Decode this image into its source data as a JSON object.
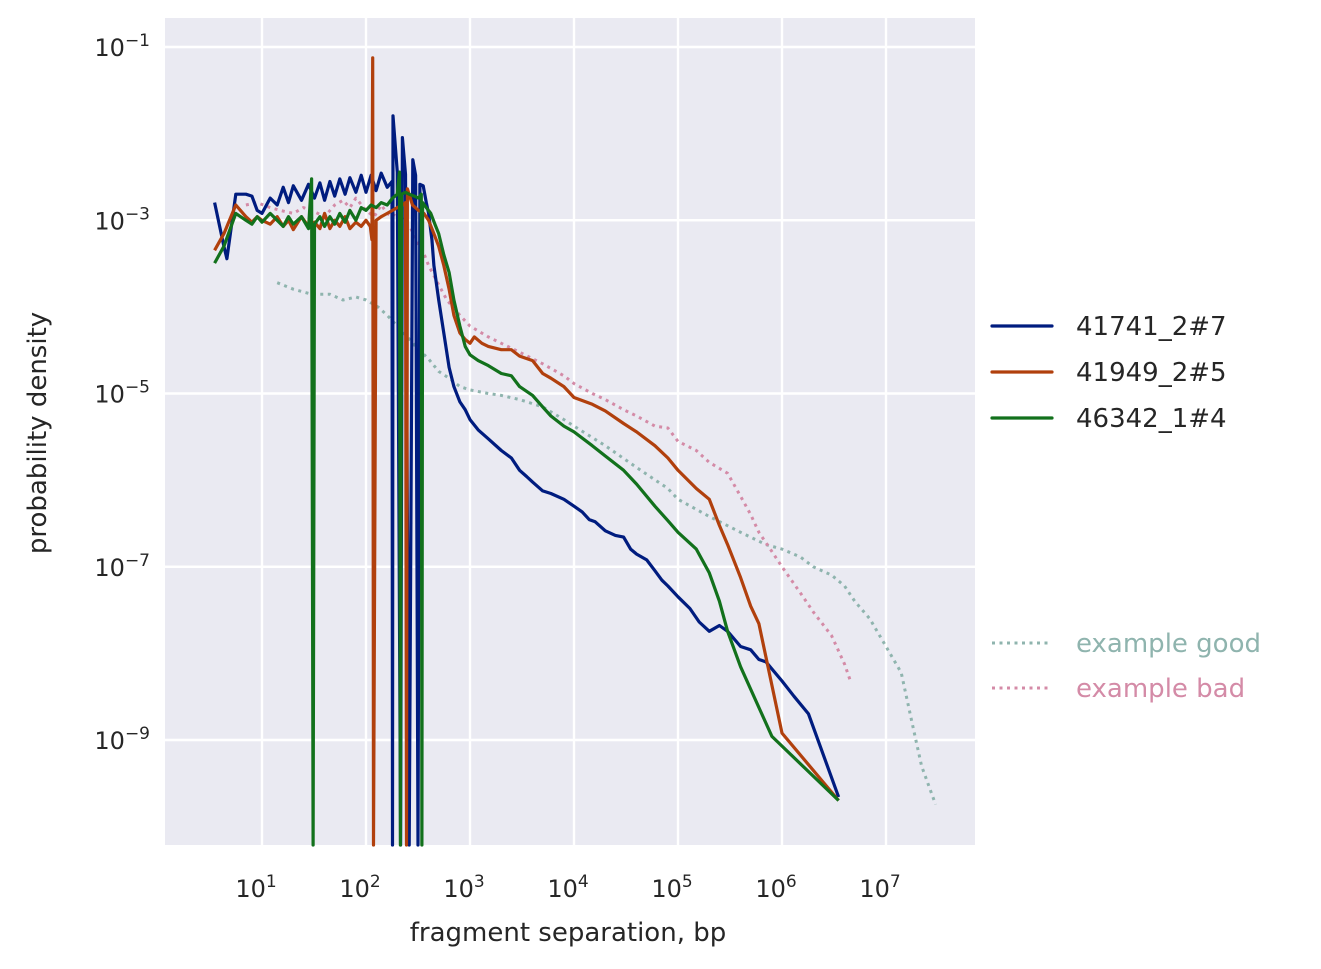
{
  "chart_data": {
    "type": "line",
    "title": "",
    "xlabel": "fragment separation, bp",
    "ylabel": "probability density",
    "xscale": "log",
    "yscale": "log",
    "xlim": [
      2.2,
      60000000
    ],
    "ylim": [
      6e-11,
      0.2
    ],
    "grid": true,
    "xticks": [
      {
        "base": "10",
        "exp": "1",
        "value": 10
      },
      {
        "base": "10",
        "exp": "2",
        "value": 100
      },
      {
        "base": "10",
        "exp": "3",
        "value": 1000
      },
      {
        "base": "10",
        "exp": "4",
        "value": 10000
      },
      {
        "base": "10",
        "exp": "5",
        "value": 100000
      },
      {
        "base": "10",
        "exp": "6",
        "value": 1000000
      },
      {
        "base": "10",
        "exp": "7",
        "value": 10000000
      }
    ],
    "yticks": [
      {
        "base": "10",
        "exp": "−1",
        "value": 0.1
      },
      {
        "base": "10",
        "exp": "−3",
        "value": 0.001
      },
      {
        "base": "10",
        "exp": "−5",
        "value": 1e-05
      },
      {
        "base": "10",
        "exp": "−7",
        "value": 1e-07
      },
      {
        "base": "10",
        "exp": "−9",
        "value": 1e-09
      }
    ],
    "legend_placement": "center-right outside",
    "series": [
      {
        "name": "41741_2#7",
        "color": "#001c7f",
        "style": "solid",
        "x": [
          3.5,
          4.3,
          4.6,
          5.6,
          7,
          8,
          9,
          10,
          12,
          14,
          16,
          18,
          20,
          24,
          28,
          32,
          36,
          40,
          45,
          50,
          56,
          63,
          70,
          80,
          90,
          100,
          112,
          125,
          140,
          160,
          178,
          180,
          182,
          200,
          215,
          224,
          240,
          260,
          282,
          300,
          316,
          330,
          355,
          380,
          400,
          430,
          450,
          500,
          560,
          630,
          700,
          800,
          900,
          1000,
          1200,
          1500,
          2000,
          2500,
          3000,
          3500,
          4000,
          5000,
          6000,
          8000,
          10000,
          12000,
          14000,
          16000,
          20000,
          25000,
          30000,
          35000,
          40000,
          50000,
          60000,
          70000,
          80000,
          100000,
          130000,
          160000,
          200000,
          250000,
          300000,
          400000,
          500000,
          600000,
          700000,
          1000000,
          1300000,
          1800000,
          3500000
        ],
        "y": [
          0.0016,
          0.0005,
          0.00036,
          0.002,
          0.002,
          0.0019,
          0.0013,
          0.0012,
          0.0018,
          0.0015,
          0.0024,
          0.0016,
          0.0025,
          0.0017,
          0.0026,
          0.0018,
          0.0027,
          0.0017,
          0.0028,
          0.0019,
          0.003,
          0.002,
          0.0031,
          0.0021,
          0.0033,
          0.0021,
          0.0033,
          0.0022,
          0.0035,
          0.0024,
          0.0028,
          6e-11,
          0.016,
          0.0036,
          6e-11,
          0.009,
          0.0034,
          6e-11,
          0.005,
          0.0033,
          6e-11,
          0.0026,
          0.0025,
          0.0016,
          0.0012,
          0.0006,
          0.0003,
          0.00012,
          5e-05,
          2e-05,
          1.2e-05,
          8e-06,
          6.5e-06,
          5e-06,
          3.8e-06,
          3e-06,
          2.2e-06,
          1.8e-06,
          1.3e-06,
          1.1e-06,
          9.5e-07,
          7.5e-07,
          7e-07,
          6e-07,
          5e-07,
          4.3e-07,
          3.5e-07,
          3.3e-07,
          2.6e-07,
          2.3e-07,
          2.2e-07,
          1.6e-07,
          1.4e-07,
          1.2e-07,
          9e-08,
          7e-08,
          6e-08,
          4.5e-08,
          3.3e-08,
          2.3e-08,
          1.8e-08,
          2.1e-08,
          1.8e-08,
          1.2e-08,
          1.1e-08,
          8.5e-09,
          8e-09,
          4.8e-09,
          3.2e-09,
          2e-09,
          2.2e-10
        ]
      },
      {
        "name": "41949_2#5",
        "color": "#b1400d",
        "style": "solid",
        "x": [
          3.5,
          4.3,
          5.6,
          7,
          8,
          9,
          10,
          12,
          14,
          16,
          18,
          20,
          24,
          28,
          32,
          36,
          40,
          45,
          50,
          56,
          63,
          70,
          80,
          90,
          100,
          110,
          114,
          116,
          118,
          125,
          140,
          160,
          180,
          200,
          224,
          240,
          245,
          250,
          280,
          320,
          360,
          400,
          450,
          500,
          560,
          630,
          700,
          800,
          900,
          1000,
          1100,
          1300,
          1500,
          2000,
          2500,
          3000,
          4000,
          5000,
          6000,
          8000,
          10000,
          15000,
          20000,
          30000,
          40000,
          60000,
          80000,
          100000,
          150000,
          200000,
          250000,
          300000,
          400000,
          500000,
          600000,
          1000000,
          3500000
        ],
        "y": [
          0.00045,
          0.0007,
          0.0015,
          0.0011,
          0.00095,
          0.0011,
          0.001,
          0.0009,
          0.0011,
          0.00085,
          0.001,
          0.00078,
          0.0011,
          0.00085,
          0.00095,
          0.0008,
          0.0012,
          0.0008,
          0.001,
          0.00085,
          0.0011,
          0.0008,
          0.00095,
          0.00085,
          0.001,
          0.00085,
          0.0006,
          0.075,
          6e-11,
          0.001,
          0.0011,
          0.0012,
          0.0013,
          0.0014,
          0.0015,
          0.0016,
          6e-11,
          0.0023,
          0.0015,
          0.0013,
          0.0012,
          0.001,
          0.0007,
          0.0005,
          0.0003,
          0.00016,
          8e-05,
          5e-05,
          4.2e-05,
          3.8e-05,
          4.5e-05,
          3.8e-05,
          3.5e-05,
          3.2e-05,
          3.2e-05,
          2.7e-05,
          2.4e-05,
          1.7e-05,
          1.5e-05,
          1.2e-05,
          9e-06,
          7.5e-06,
          6.3e-06,
          4.5e-06,
          3.6e-06,
          2.5e-06,
          1.8e-06,
          1.3e-06,
          8e-07,
          6e-07,
          3e-07,
          1.8e-07,
          7.5e-08,
          3.5e-08,
          2.2e-08,
          1.2e-09,
          2e-10
        ]
      },
      {
        "name": "46342_1#4",
        "color": "#12711c",
        "style": "solid",
        "x": [
          3.5,
          4.3,
          5.6,
          7,
          8,
          9,
          10,
          12,
          14,
          16,
          18,
          20,
          24,
          28,
          30,
          31,
          32,
          36,
          40,
          45,
          50,
          56,
          63,
          70,
          80,
          90,
          100,
          112,
          125,
          140,
          160,
          180,
          200,
          210,
          214,
          220,
          240,
          260,
          290,
          320,
          340,
          345,
          350,
          380,
          420,
          460,
          500,
          560,
          630,
          700,
          800,
          900,
          1000,
          1200,
          1500,
          2000,
          2500,
          3000,
          4000,
          5000,
          6000,
          8000,
          10000,
          15000,
          20000,
          30000,
          40000,
          60000,
          80000,
          100000,
          150000,
          200000,
          250000,
          300000,
          400000,
          800000,
          3500000
        ],
        "y": [
          0.00032,
          0.0005,
          0.0012,
          0.001,
          0.0009,
          0.0011,
          0.00095,
          0.0012,
          0.001,
          0.00085,
          0.0011,
          0.0009,
          0.0011,
          0.0008,
          0.003,
          6e-11,
          0.0009,
          0.0011,
          0.00085,
          0.0011,
          0.0009,
          0.0012,
          0.00095,
          0.0013,
          0.001,
          0.0014,
          0.0013,
          0.0015,
          0.0014,
          0.0016,
          0.0015,
          0.0018,
          0.002,
          0.0036,
          6e-11,
          0.002,
          0.0021,
          0.002,
          0.0019,
          0.0018,
          0.002,
          6e-11,
          0.0016,
          0.0014,
          0.0012,
          0.0009,
          0.0007,
          0.0004,
          0.00025,
          0.00012,
          6e-05,
          3.5e-05,
          2.8e-05,
          2.4e-05,
          2.1e-05,
          1.7e-05,
          1.6e-05,
          1.2e-05,
          9.5e-06,
          7e-06,
          5.5e-06,
          4.2e-06,
          3.6e-06,
          2.5e-06,
          1.9e-06,
          1.3e-06,
          9e-07,
          5e-07,
          3.4e-07,
          2.5e-07,
          1.6e-07,
          8.5e-08,
          4e-08,
          1.8e-08,
          7e-09,
          1.1e-09,
          2e-10
        ]
      },
      {
        "name": "example good",
        "color": "#8fb4ae",
        "style": "dotted",
        "x": [
          14,
          20,
          30,
          45,
          60,
          80,
          100,
          130,
          160,
          200,
          250,
          300,
          400,
          500,
          630,
          800,
          1000,
          1500,
          2000,
          3000,
          5000,
          8000,
          10000,
          20000,
          40000,
          80000,
          100000,
          200000,
          400000,
          700000,
          1000000,
          1500000,
          2000000,
          3000000,
          4000000,
          5000000,
          7000000,
          10000000,
          14000000,
          18000000,
          22000000,
          30000000
        ],
        "y": [
          0.00019,
          0.00016,
          0.00014,
          0.00014,
          0.00012,
          0.00013,
          0.00012,
          0.0001,
          8e-05,
          6e-05,
          4.5e-05,
          3.5e-05,
          2.5e-05,
          1.8e-05,
          1.5e-05,
          1.2e-05,
          1.1e-05,
          1e-05,
          9.5e-06,
          8.5e-06,
          7e-06,
          5e-06,
          4.2e-06,
          2.5e-06,
          1.4e-06,
          8e-07,
          6e-07,
          3.8e-07,
          2.5e-07,
          1.8e-07,
          1.6e-07,
          1.3e-07,
          1e-07,
          8e-08,
          6e-08,
          4e-08,
          2.5e-08,
          1.2e-08,
          6e-09,
          1.5e-09,
          5e-10,
          1.8e-10
        ]
      },
      {
        "name": "example bad",
        "color": "#d48ba7",
        "style": "dotted",
        "x": [
          7,
          9,
          12,
          15,
          20,
          25,
          30,
          40,
          50,
          60,
          70,
          80,
          100,
          120,
          140,
          160,
          180,
          200,
          220,
          240,
          270,
          300,
          350,
          400,
          500,
          600,
          800,
          1000,
          1500,
          2000,
          3000,
          5000,
          8000,
          10000,
          15000,
          20000,
          30000,
          40000,
          60000,
          80000,
          100000,
          150000,
          200000,
          300000,
          400000,
          500000,
          600000,
          800000,
          1000000,
          1500000,
          2000000,
          3000000,
          4000000,
          4500000
        ],
        "y": [
          0.0015,
          0.0016,
          0.0014,
          0.0013,
          0.0012,
          0.0014,
          0.0013,
          0.0011,
          0.0015,
          0.0017,
          0.0014,
          0.0018,
          0.0013,
          0.0011,
          0.0015,
          0.0012,
          0.0011,
          0.0013,
          0.0011,
          0.0009,
          0.0008,
          0.0006,
          0.00045,
          0.0003,
          0.00018,
          0.00012,
          8e-05,
          6e-05,
          4.5e-05,
          3.8e-05,
          3e-05,
          2.2e-05,
          1.6e-05,
          1.3e-05,
          1e-05,
          8.5e-06,
          6.5e-06,
          5.5e-06,
          4.2e-06,
          4e-06,
          2.8e-06,
          2.2e-06,
          1.6e-06,
          1.2e-06,
          6.5e-07,
          4e-07,
          2.5e-07,
          1.5e-07,
          1e-07,
          5e-08,
          3e-08,
          1.6e-08,
          7.5e-09,
          5e-09
        ]
      }
    ]
  }
}
